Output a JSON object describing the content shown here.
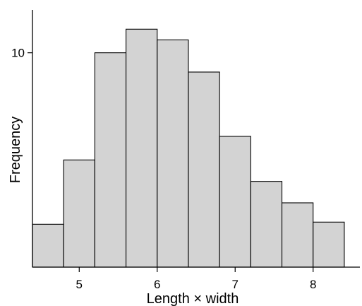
{
  "chart_data": {
    "type": "bar",
    "subtype": "histogram",
    "title": "",
    "xlabel": "Length × width",
    "ylabel": "Frequency",
    "bin_edges": [
      4.4,
      4.8,
      5.2,
      5.6,
      6.0,
      6.4,
      6.8,
      7.2,
      7.6,
      8.0,
      8.4
    ],
    "values": [
      2.0,
      5.0,
      10.0,
      11.1,
      10.6,
      9.1,
      6.1,
      4.0,
      3.0,
      2.1
    ],
    "xlim": [
      4.4,
      8.6
    ],
    "ylim": [
      0,
      12
    ],
    "xticks": [
      5,
      6,
      7,
      8
    ],
    "xtick_labels": [
      "5",
      "6",
      "7",
      "8"
    ],
    "yticks": [
      10
    ],
    "ytick_labels": [
      "10"
    ],
    "grid": false,
    "legend": "none",
    "colors": {
      "bar_fill": "#d3d3d3",
      "bar_edge": "#000000",
      "axis": "#000000"
    }
  }
}
